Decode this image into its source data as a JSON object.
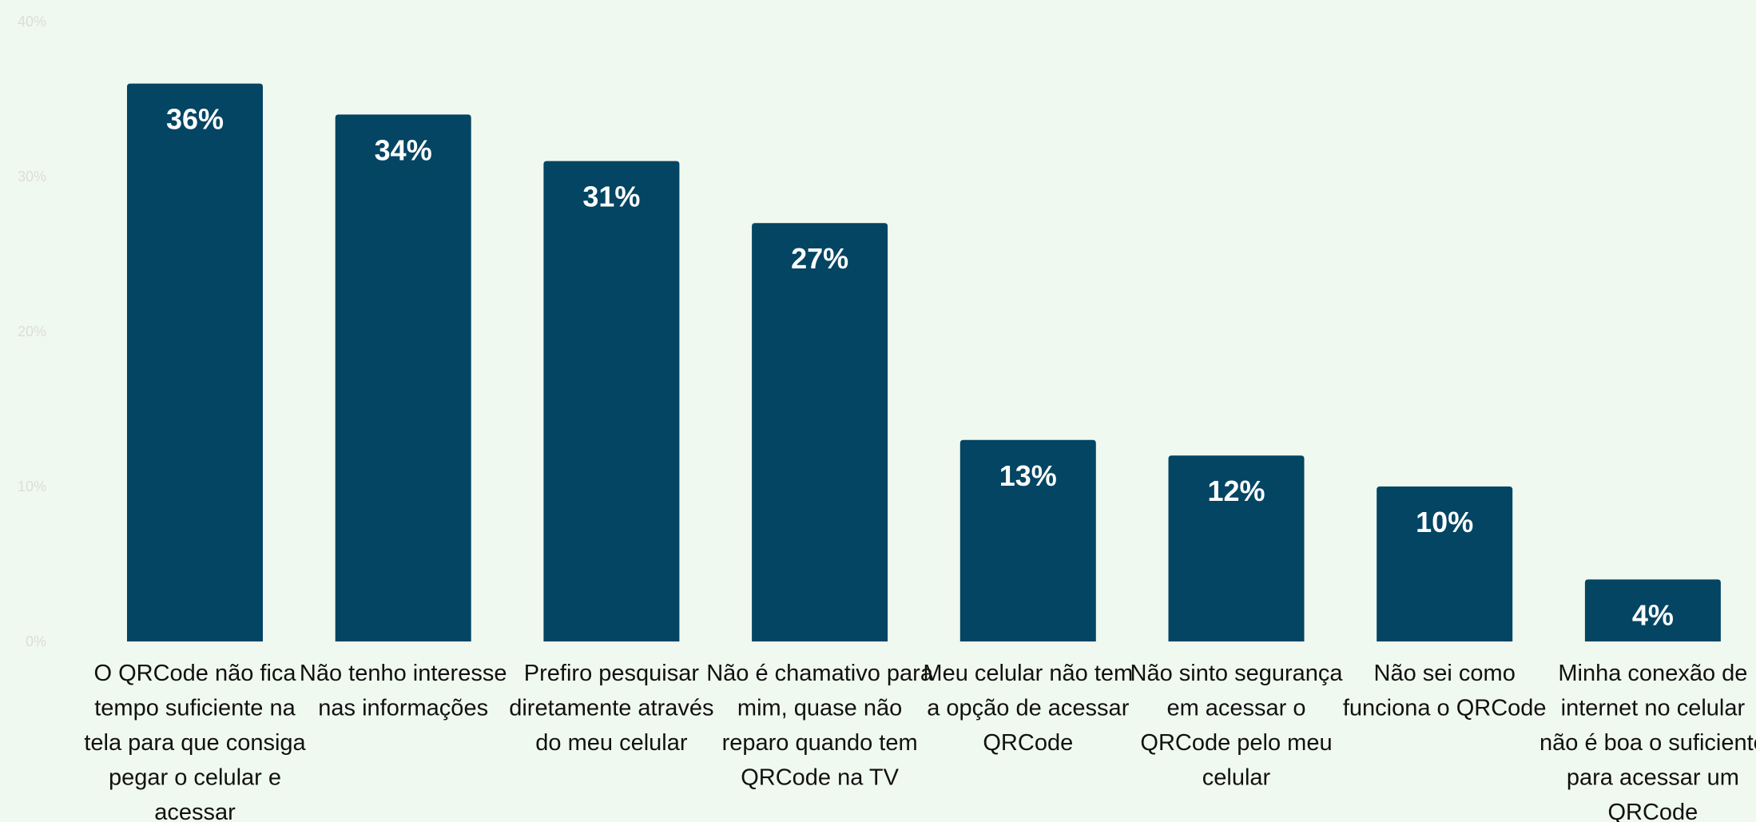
{
  "chart_data": {
    "type": "bar",
    "categories": [
      [
        "O QRCode não fica",
        "tempo suficiente na",
        "tela para que consiga",
        "pegar o celular e",
        "acessar"
      ],
      [
        "Não tenho interesse",
        "nas informações"
      ],
      [
        "Prefiro pesquisar",
        "diretamente através",
        "do meu celular"
      ],
      [
        "Não é chamativo para",
        "mim, quase não",
        "reparo quando tem",
        "QRCode na TV"
      ],
      [
        "Meu celular não tem",
        "a opção de acessar",
        "QRCode"
      ],
      [
        "Não sinto segurança",
        "em acessar o",
        "QRCode pelo meu",
        "celular"
      ],
      [
        "Não sei como",
        "funciona o QRCode"
      ],
      [
        "Minha conexão de",
        "internet no celular",
        "não é boa o suficiente",
        "para acessar um",
        "QRCode"
      ]
    ],
    "values": [
      36,
      34,
      31,
      27,
      13,
      12,
      10,
      4
    ],
    "data_labels": [
      "36%",
      "34%",
      "31%",
      "27%",
      "13%",
      "12%",
      "10%",
      "4%"
    ],
    "y_ticks": [
      "0%",
      "10%",
      "20%",
      "30%",
      "40%"
    ],
    "ylim": [
      0,
      40
    ],
    "grid": false,
    "legend": "none",
    "bar_color": "#034563",
    "background_color": "#f0f9ef"
  }
}
